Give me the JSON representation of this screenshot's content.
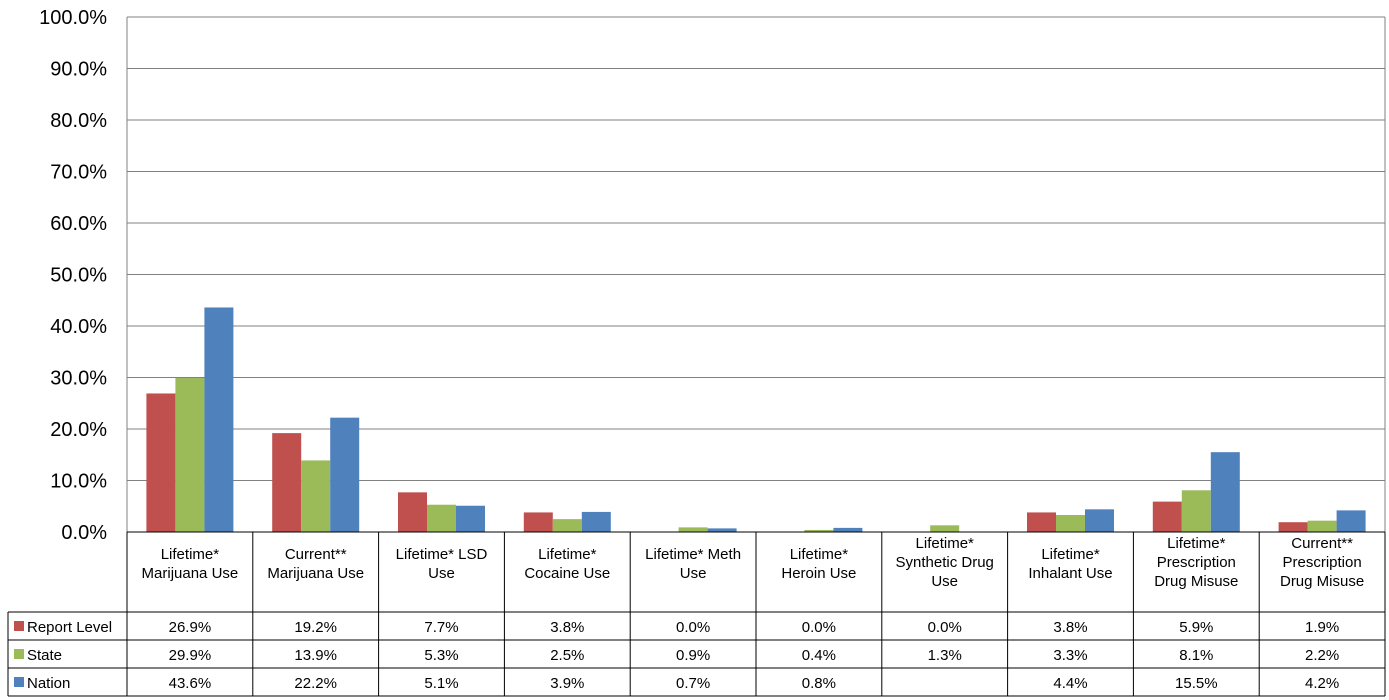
{
  "chart_data": {
    "type": "bar",
    "categories": [
      [
        "Lifetime*",
        "Marijuana Use"
      ],
      [
        "Current**",
        "Marijuana Use"
      ],
      [
        "Lifetime* LSD",
        "Use"
      ],
      [
        "Lifetime*",
        "Cocaine Use"
      ],
      [
        "Lifetime* Meth",
        "Use"
      ],
      [
        "Lifetime*",
        "Heroin Use"
      ],
      [
        "Lifetime*",
        "Synthetic Drug",
        "Use"
      ],
      [
        "Lifetime*",
        "Inhalant Use"
      ],
      [
        "Lifetime*",
        "Prescription",
        "Drug Misuse"
      ],
      [
        "Current**",
        "Prescription",
        "Drug Misuse"
      ]
    ],
    "series": [
      {
        "name": "Report Level",
        "color": "#C0504D",
        "values": [
          26.9,
          19.2,
          7.7,
          3.8,
          0.0,
          0.0,
          0.0,
          3.8,
          5.9,
          1.9
        ],
        "labels": [
          "26.9%",
          "19.2%",
          "7.7%",
          "3.8%",
          "0.0%",
          "0.0%",
          "0.0%",
          "3.8%",
          "5.9%",
          "1.9%"
        ]
      },
      {
        "name": "State",
        "color": "#9BBB59",
        "values": [
          29.9,
          13.9,
          5.3,
          2.5,
          0.9,
          0.4,
          1.3,
          3.3,
          8.1,
          2.2
        ],
        "labels": [
          "29.9%",
          "13.9%",
          "5.3%",
          "2.5%",
          "0.9%",
          "0.4%",
          "1.3%",
          "3.3%",
          "8.1%",
          "2.2%"
        ]
      },
      {
        "name": "Nation",
        "color": "#4F81BD",
        "values": [
          43.6,
          22.2,
          5.1,
          3.9,
          0.7,
          0.8,
          null,
          4.4,
          15.5,
          4.2
        ],
        "labels": [
          "43.6%",
          "22.2%",
          "5.1%",
          "3.9%",
          "0.7%",
          "0.8%",
          "",
          "4.4%",
          "15.5%",
          "4.2%"
        ]
      }
    ],
    "ylim": [
      0,
      100
    ],
    "yticks": [
      "0.0%",
      "10.0%",
      "20.0%",
      "30.0%",
      "40.0%",
      "50.0%",
      "60.0%",
      "70.0%",
      "80.0%",
      "90.0%",
      "100.0%"
    ],
    "ytick_values": [
      0,
      10,
      20,
      30,
      40,
      50,
      60,
      70,
      80,
      90,
      100
    ],
    "grid": true,
    "legend": "data-table-left"
  }
}
